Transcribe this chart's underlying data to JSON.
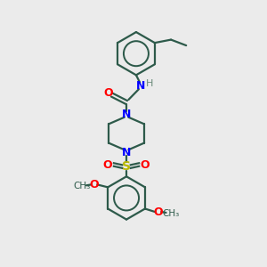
{
  "background_color": "#ebebeb",
  "bond_color": "#2d5a4a",
  "N_color": "#0000ff",
  "O_color": "#ff0000",
  "S_color": "#b8b800",
  "H_color": "#6a8a7a",
  "line_width": 1.6,
  "figsize": [
    3.0,
    3.0
  ],
  "dpi": 100,
  "xlim": [
    0,
    10
  ],
  "ylim": [
    0,
    10
  ]
}
